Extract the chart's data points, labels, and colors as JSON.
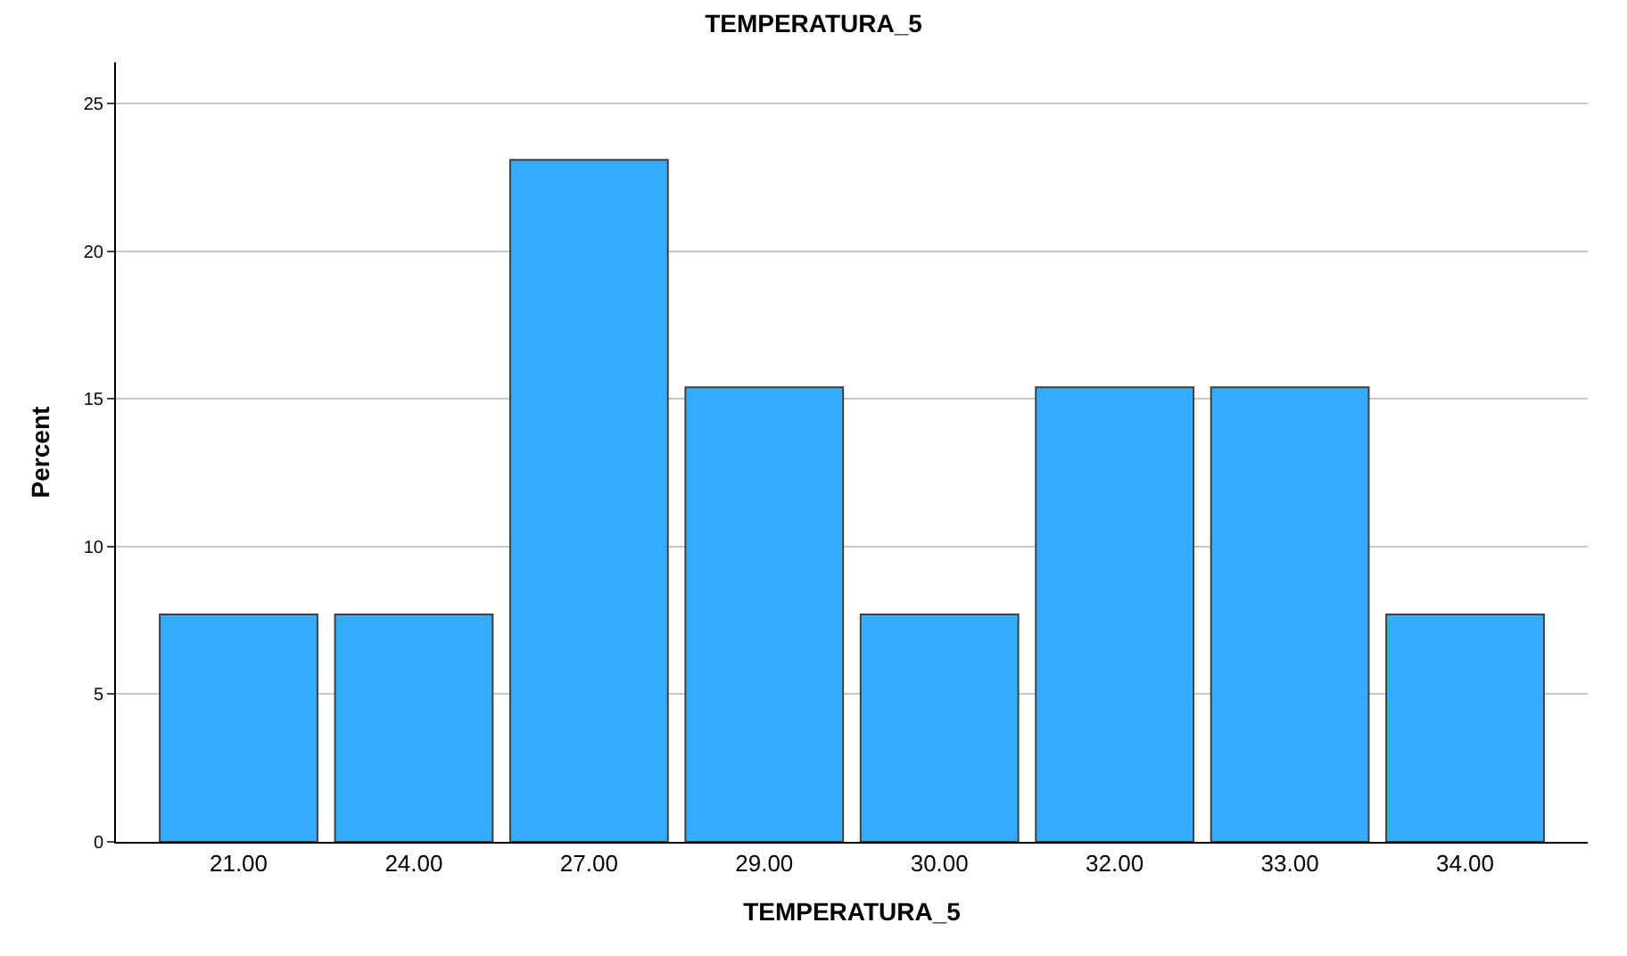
{
  "chart_data": {
    "type": "bar",
    "title": "TEMPERATURA_5",
    "xlabel": "TEMPERATURA_5",
    "ylabel": "Percent",
    "categories": [
      "21.00",
      "24.00",
      "27.00",
      "29.00",
      "30.00",
      "32.00",
      "33.00",
      "34.00"
    ],
    "values": [
      7.7,
      7.7,
      23.1,
      15.4,
      7.7,
      15.4,
      15.4,
      7.7
    ],
    "color": "#33adff",
    "ylim": [
      0,
      26.4
    ],
    "yticks": [
      0,
      5,
      10,
      15,
      20,
      25
    ],
    "grid": "y"
  }
}
